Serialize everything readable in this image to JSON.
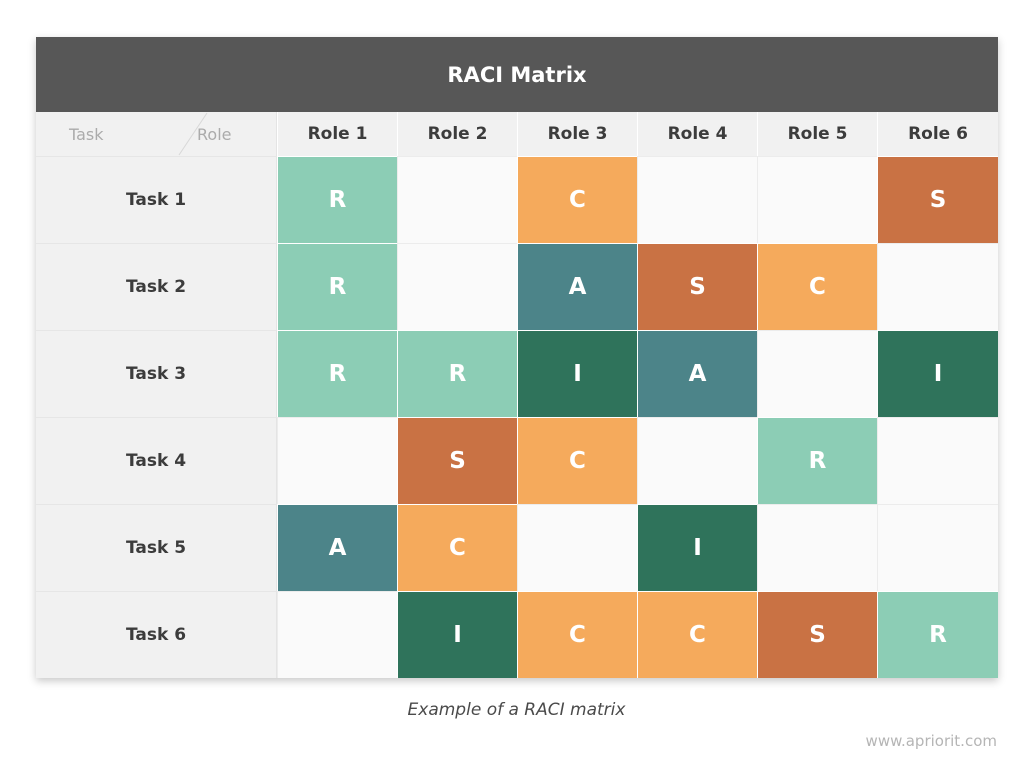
{
  "title": "RACI Matrix",
  "corner": {
    "row_label": "Task",
    "col_label": "Role"
  },
  "roles": [
    "Role 1",
    "Role 2",
    "Role 3",
    "Role 4",
    "Role 5",
    "Role 6"
  ],
  "tasks": [
    {
      "label": "Task 1",
      "cells": [
        "R",
        "",
        "C",
        "",
        "",
        "S"
      ]
    },
    {
      "label": "Task 2",
      "cells": [
        "R",
        "",
        "A",
        "S",
        "C",
        ""
      ]
    },
    {
      "label": "Task 3",
      "cells": [
        "R",
        "R",
        "I",
        "A",
        "",
        "I"
      ]
    },
    {
      "label": "Task 4",
      "cells": [
        "",
        "S",
        "C",
        "",
        "R",
        ""
      ]
    },
    {
      "label": "Task 5",
      "cells": [
        "A",
        "C",
        "",
        "I",
        "",
        ""
      ]
    },
    {
      "label": "Task 6",
      "cells": [
        "",
        "I",
        "C",
        "C",
        "S",
        "R"
      ]
    }
  ],
  "colors": {
    "R": "#8ccdb5",
    "A": "#4c8489",
    "C": "#f5aa5c",
    "I": "#2f735b",
    "S": "#c97244"
  },
  "caption": "Example of a RACI matrix",
  "watermark": "www.apriorit.com"
}
